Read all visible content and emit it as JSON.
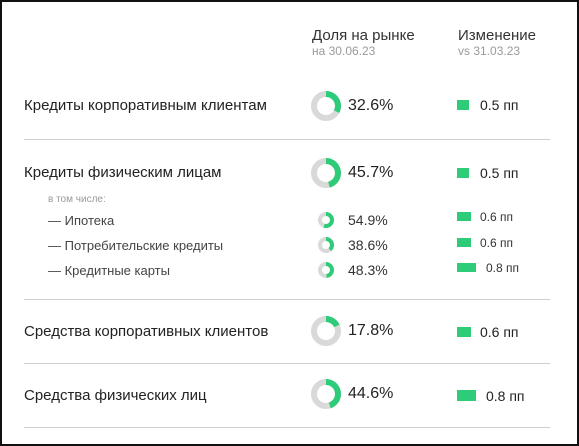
{
  "header": {
    "share_title": "Доля на рынке",
    "share_date": "на 30.06.23",
    "change_title": "Изменение",
    "change_vs": "vs 31.03.23"
  },
  "colors": {
    "accent": "#2ecc78",
    "track": "#d9d9d9",
    "divider": "#cfcfcf"
  },
  "rows": [
    {
      "label": "Кредиты корпоративным клиентам",
      "share": "32.6%",
      "share_value": 32.6,
      "change": "0.5 пп",
      "change_value": 0.5
    },
    {
      "label": "Кредиты физическим лицам",
      "share": "45.7%",
      "share_value": 45.7,
      "change": "0.5 пп",
      "change_value": 0.5
    },
    {
      "label": "Средства корпоративных клиентов",
      "share": "17.8%",
      "share_value": 17.8,
      "change": "0.6 пп",
      "change_value": 0.6
    },
    {
      "label": "Средства физических лиц",
      "share": "44.6%",
      "share_value": 44.6,
      "change": "0.8 пп",
      "change_value": 0.8
    }
  ],
  "sub_note": "в том числе:",
  "sub_rows": [
    {
      "label": "— Ипотека",
      "share": "54.9%",
      "share_value": 54.9,
      "change": "0.6 пп",
      "change_value": 0.6
    },
    {
      "label": "— Потребительские кредиты",
      "share": "38.6%",
      "share_value": 38.6,
      "change": "0.6 пп",
      "change_value": 0.6
    },
    {
      "label": "— Кредитные карты",
      "share": "48.3%",
      "share_value": 48.3,
      "change": "0.8 пп",
      "change_value": 0.8
    }
  ]
}
